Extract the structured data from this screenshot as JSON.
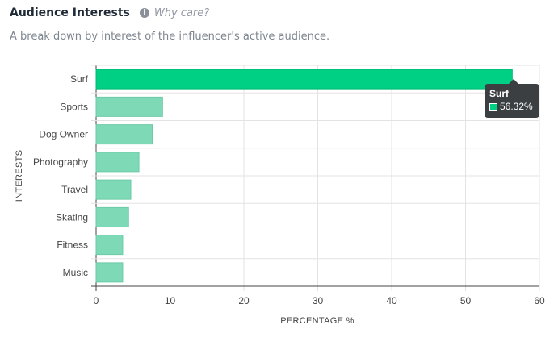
{
  "header": {
    "title": "Audience Interests",
    "info_icon": "info-icon",
    "why_label": "Why care?",
    "subtitle": "A break down by interest of the influencer's active audience."
  },
  "colors": {
    "highlight_bar": "#00d084",
    "bar": "#7ed9b7",
    "tooltip_bg": "#3c3f42"
  },
  "chart_data": {
    "type": "bar",
    "orientation": "horizontal",
    "categories": [
      "Surf",
      "Sports",
      "Dog Owner",
      "Photography",
      "Travel",
      "Skating",
      "Fitness",
      "Music"
    ],
    "values": [
      56.32,
      9.0,
      7.6,
      5.8,
      4.7,
      4.4,
      3.6,
      3.6
    ],
    "xlabel": "PERCENTAGE %",
    "ylabel": "INTERESTS",
    "xlim": [
      0,
      60
    ],
    "x_ticks": [
      "0",
      "10",
      "20",
      "30",
      "40",
      "50",
      "60"
    ],
    "grid": true,
    "highlighted_category": "Surf"
  },
  "tooltip": {
    "title": "Surf",
    "value_label": "56.32%"
  }
}
